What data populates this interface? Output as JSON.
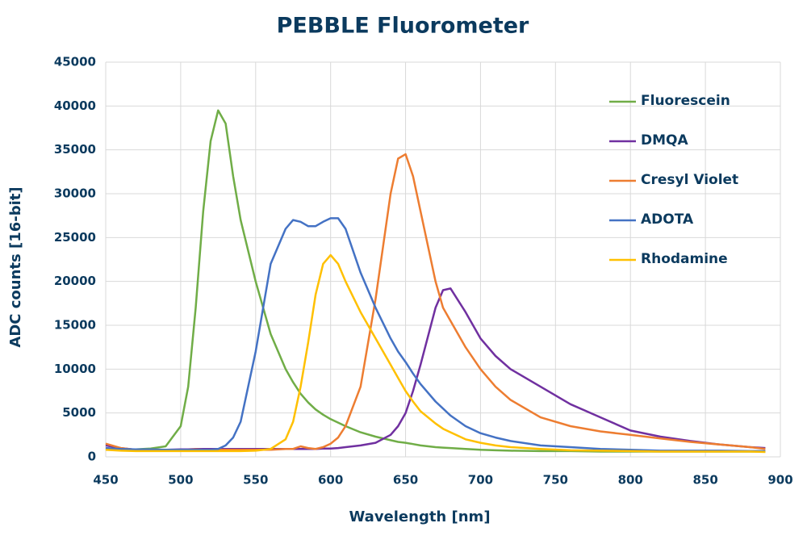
{
  "chart_data": {
    "type": "line",
    "title": "PEBBLE Fluorometer",
    "x_label": "Wavelength [nm]",
    "y_label": "ADC counts [16-bit]",
    "x": [
      450,
      460,
      470,
      480,
      490,
      500,
      505,
      510,
      515,
      520,
      525,
      530,
      535,
      540,
      550,
      560,
      570,
      575,
      580,
      585,
      590,
      595,
      600,
      605,
      610,
      620,
      630,
      640,
      645,
      650,
      655,
      660,
      670,
      675,
      680,
      690,
      700,
      710,
      720,
      740,
      760,
      780,
      800,
      820,
      840,
      860,
      880,
      890
    ],
    "series": [
      {
        "name": "Fluorescein",
        "color": "#70ad47",
        "values": [
          900,
          850,
          850,
          950,
          1200,
          3500,
          8000,
          17000,
          28000,
          36000,
          39500,
          38000,
          32000,
          27000,
          20000,
          14000,
          10000,
          8500,
          7200,
          6200,
          5400,
          4800,
          4300,
          3900,
          3500,
          2800,
          2300,
          1900,
          1700,
          1600,
          1450,
          1300,
          1100,
          1050,
          1000,
          900,
          800,
          750,
          700,
          650,
          650,
          600,
          600,
          600,
          600,
          600,
          600,
          600
        ]
      },
      {
        "name": "DMQA",
        "color": "#7030a0",
        "values": [
          1300,
          1000,
          800,
          800,
          800,
          850,
          850,
          900,
          900,
          900,
          900,
          900,
          900,
          900,
          900,
          900,
          900,
          900,
          900,
          900,
          900,
          950,
          950,
          1000,
          1100,
          1300,
          1600,
          2500,
          3500,
          5000,
          7500,
          10500,
          17000,
          19000,
          19200,
          16500,
          13500,
          11500,
          10000,
          8000,
          6000,
          4500,
          3000,
          2300,
          1800,
          1400,
          1100,
          1000
        ]
      },
      {
        "name": "Cresyl Violet",
        "color": "#ed7d31",
        "values": [
          1500,
          1000,
          800,
          800,
          800,
          800,
          800,
          850,
          800,
          800,
          800,
          800,
          800,
          800,
          800,
          800,
          900,
          900,
          1200,
          1000,
          900,
          1100,
          1500,
          2200,
          3500,
          8000,
          18000,
          30000,
          34000,
          34500,
          32000,
          28000,
          20000,
          17000,
          15500,
          12500,
          10000,
          8000,
          6500,
          4500,
          3500,
          2900,
          2500,
          2100,
          1700,
          1400,
          1100,
          900
        ]
      },
      {
        "name": "ADOTA",
        "color": "#4472c4",
        "values": [
          1000,
          900,
          850,
          850,
          800,
          800,
          800,
          800,
          800,
          800,
          900,
          1300,
          2200,
          4000,
          12000,
          22000,
          26000,
          27000,
          26800,
          26300,
          26300,
          26800,
          27200,
          27200,
          26000,
          21000,
          17000,
          13500,
          12000,
          10800,
          9500,
          8300,
          6300,
          5500,
          4700,
          3500,
          2700,
          2200,
          1800,
          1300,
          1100,
          900,
          800,
          700,
          700,
          700,
          650,
          650
        ]
      },
      {
        "name": "Rhodamine",
        "color": "#ffc000",
        "values": [
          800,
          700,
          650,
          650,
          650,
          650,
          650,
          650,
          650,
          650,
          650,
          650,
          650,
          650,
          700,
          900,
          2000,
          4000,
          8000,
          13000,
          18500,
          22000,
          23000,
          22000,
          20000,
          16500,
          13500,
          10500,
          9000,
          7500,
          6300,
          5200,
          3800,
          3200,
          2800,
          2000,
          1600,
          1300,
          1100,
          900,
          750,
          700,
          650,
          600,
          600,
          600,
          600,
          550
        ]
      }
    ],
    "xlim": [
      450,
      900
    ],
    "xticks": [
      450,
      500,
      550,
      600,
      650,
      700,
      750,
      800,
      850,
      900
    ],
    "ylim": [
      0,
      45000
    ],
    "yticks": [
      0,
      5000,
      10000,
      15000,
      20000,
      25000,
      30000,
      35000,
      40000,
      45000
    ],
    "grid": true,
    "legend": "upper right"
  }
}
